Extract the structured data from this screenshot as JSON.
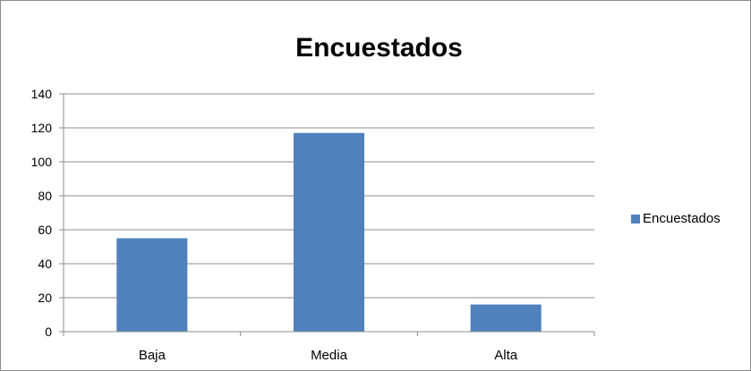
{
  "chart_data": {
    "type": "bar",
    "title": "Encuestados",
    "xlabel": "",
    "ylabel": "",
    "categories": [
      "Baja",
      "Media",
      "Alta"
    ],
    "series": [
      {
        "name": "Encuestados",
        "values": [
          55,
          117,
          16
        ],
        "color": "#4f81bd"
      }
    ],
    "ylim": [
      0,
      140
    ],
    "yticks": [
      "0",
      "20",
      "40",
      "60",
      "80",
      "100",
      "120",
      "140"
    ],
    "grid": true,
    "legend": "right"
  }
}
